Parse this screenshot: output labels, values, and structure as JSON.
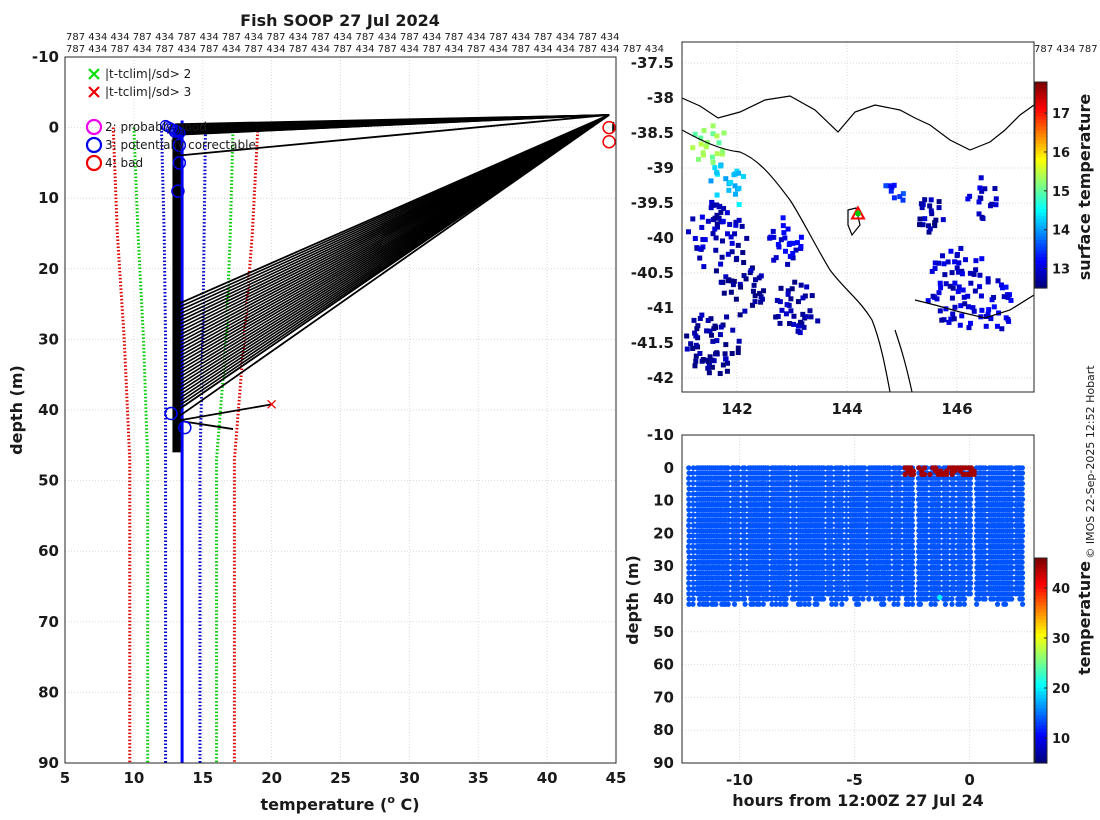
{
  "chart_data": [
    {
      "name": "profile",
      "type": "line",
      "title": "Fish SOOP 27 Jul 2024",
      "xlabel": "temperature (",
      "xlabel_sup": "o",
      "xlabel_tail": " C)",
      "ylabel": "depth (m)",
      "xlim": [
        5,
        45
      ],
      "ylim": [
        -10,
        90
      ],
      "xticks": [
        "5",
        "10",
        "15",
        "20",
        "25",
        "30",
        "35",
        "40",
        "45"
      ],
      "yticks": [
        "-10",
        "0",
        "10",
        "20",
        "30",
        "40",
        "50",
        "60",
        "70",
        "80",
        "90"
      ],
      "id_row_1": "787 434 434 787 434 787 434 787 434 787 434 787 434 787 434 787 434 787 434 787 434 787 434 787 434",
      "id_row_2": "787 434 787 434 787 434 787 434 787 434 787 434 787 434 787 434 787 434 787 434 787 434 434 787 434 787 434",
      "legend": [
        {
          "marker": "x",
          "color": "#00dd00",
          "label": "|t-tclim|/sd> 2"
        },
        {
          "marker": "x",
          "color": "#ee0000",
          "label": "|t-tclim|/sd> 3"
        },
        {
          "marker": "o",
          "color": "#ee00ee",
          "label": "2: probably good"
        },
        {
          "marker": "o",
          "color": "#0000ee",
          "label": "3: potentially correctable"
        },
        {
          "marker": "o",
          "color": "#ee0000",
          "label": "4: bad"
        }
      ],
      "series": [
        {
          "name": "clim -3sd",
          "color": "#dd0000",
          "style": "dotted",
          "x": [
            8.5,
            8.8,
            9.3,
            9.7,
            9.7
          ],
          "y": [
            0,
            15,
            30,
            47,
            90
          ]
        },
        {
          "name": "clim -2sd",
          "color": "#00cc00",
          "style": "dotted",
          "x": [
            10.0,
            10.3,
            10.7,
            11.0,
            11.0
          ],
          "y": [
            0,
            15,
            30,
            47,
            90
          ]
        },
        {
          "name": "clim -1sd",
          "color": "#0000cc",
          "style": "dotted",
          "x": [
            12.0,
            12.2,
            12.3,
            12.3,
            12.3
          ],
          "y": [
            0,
            15,
            30,
            47,
            90
          ]
        },
        {
          "name": "clim +1sd",
          "color": "#0000cc",
          "style": "dotted",
          "x": [
            15.2,
            15.1,
            15.0,
            14.8,
            14.8
          ],
          "y": [
            0,
            15,
            30,
            47,
            90
          ]
        },
        {
          "name": "clim +2sd",
          "color": "#00cc00",
          "style": "dotted",
          "x": [
            17.2,
            17.0,
            16.7,
            16.0,
            16.0
          ],
          "y": [
            0,
            15,
            30,
            47,
            90
          ]
        },
        {
          "name": "clim +3sd",
          "color": "#dd0000",
          "style": "dotted",
          "x": [
            19.0,
            18.6,
            18.0,
            17.3,
            17.3
          ],
          "y": [
            0,
            15,
            30,
            47,
            90
          ]
        },
        {
          "name": "profile blue",
          "color": "#0000ff",
          "style": "solid",
          "x": [
            13.5,
            13.5,
            13.5
          ],
          "y": [
            -1,
            40,
            90
          ]
        }
      ],
      "spikes": [
        {
          "from": [
            13.0,
            0.0
          ],
          "to": [
            44.5,
            -1.8
          ]
        },
        {
          "from": [
            13.0,
            1.0
          ],
          "to": [
            44.5,
            -1.8
          ]
        },
        {
          "from": [
            13.0,
            4.0
          ],
          "to": [
            44.5,
            -1.8
          ]
        },
        {
          "from": [
            13.2,
            25.0
          ],
          "to": [
            44.5,
            -1.8
          ]
        },
        {
          "from": [
            13.2,
            40.0
          ],
          "to": [
            44.5,
            -1.8
          ]
        },
        {
          "from": [
            13.2,
            41.0
          ],
          "to": [
            44.5,
            -1.8
          ]
        },
        {
          "from": [
            13.2,
            41.5
          ],
          "to": [
            20.0,
            39.2
          ]
        },
        {
          "from": [
            13.2,
            41.5
          ],
          "to": [
            17.2,
            42.7
          ]
        }
      ],
      "flag_circles": [
        {
          "x": 44.5,
          "y": 0.0,
          "color": "#ee0000"
        },
        {
          "x": 44.5,
          "y": 2.0,
          "color": "#ee0000"
        },
        {
          "x": 13.0,
          "y": 0.5,
          "color": "#0000ee"
        },
        {
          "x": 13.3,
          "y": 2.5,
          "color": "#0000ee"
        },
        {
          "x": 13.3,
          "y": 5.0,
          "color": "#0000ee"
        },
        {
          "x": 13.2,
          "y": 9.0,
          "color": "#0000ee"
        },
        {
          "x": 12.7,
          "y": 40.5,
          "color": "#0000ee"
        },
        {
          "x": 13.7,
          "y": 42.5,
          "color": "#0000ee"
        }
      ],
      "flag_crosses": [
        {
          "x": 20.0,
          "y": 39.2,
          "color": "#ee0000"
        }
      ]
    },
    {
      "name": "map",
      "type": "heatmap",
      "xticks": [
        "142",
        "144",
        "146"
      ],
      "xtick_values": [
        142,
        144,
        146
      ],
      "yticks": [
        "-37.5",
        "-38",
        "-38.5",
        "-39",
        "-39.5",
        "-40",
        "-40.5",
        "-41",
        "-41.5",
        "-42"
      ],
      "ytick_values": [
        -37.5,
        -38,
        -38.5,
        -39,
        -39.5,
        -40,
        -40.5,
        -41,
        -41.5,
        -42
      ],
      "xlim": [
        141,
        147.4
      ],
      "ylim": [
        -42.2,
        -37.2
      ],
      "colorbar_label": "surface temperature",
      "colorbar_ticks": [
        "13",
        "14",
        "15",
        "16",
        "17"
      ],
      "colorbar_tick_values": [
        13,
        14,
        15,
        16,
        17
      ],
      "clim": [
        12.5,
        17.8
      ],
      "ship_position": {
        "lon": 144.2,
        "lat": -39.65
      }
    },
    {
      "name": "timeseries",
      "type": "scatter",
      "xlabel": "hours from 12:00Z 27 Jul 24",
      "ylabel": "depth (m)",
      "xlim": [
        -12.5,
        2.8
      ],
      "ylim": [
        -10,
        90
      ],
      "xticks": [
        "-10",
        "-5",
        "0"
      ],
      "xtick_values": [
        -10,
        -5,
        0
      ],
      "yticks": [
        "-10",
        "0",
        "10",
        "20",
        "30",
        "40",
        "50",
        "60",
        "70",
        "80",
        "90"
      ],
      "colorbar_label": "temperature",
      "colorbar_ticks": [
        "10",
        "20",
        "30",
        "40"
      ],
      "colorbar_tick_values": [
        10,
        20,
        30,
        40
      ],
      "clim": [
        5,
        46
      ],
      "base_temperature": 13.5,
      "hot_points": {
        "x_range": [
          -2.8,
          0.3
        ],
        "depths": [
          0,
          1,
          2
        ],
        "temperature": 44.5
      }
    }
  ],
  "credit": "© IMOS 22-Sep-2025 12:52 Hobart"
}
